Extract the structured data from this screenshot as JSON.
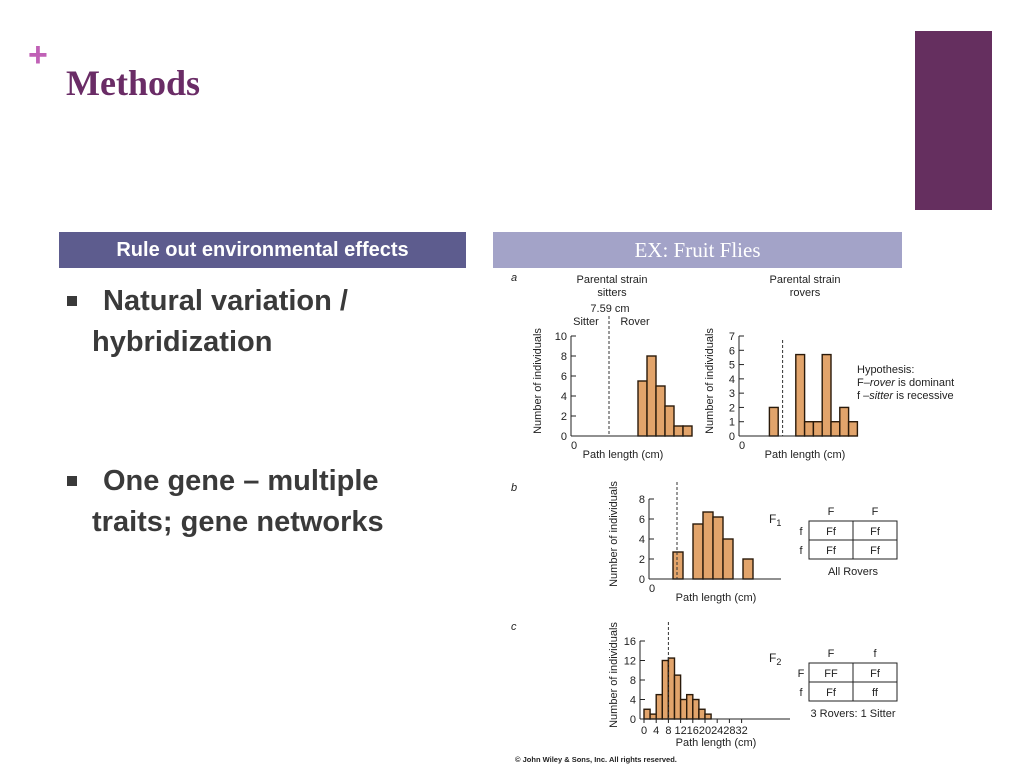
{
  "slide": {
    "plus_mark": "+",
    "title": "Methods",
    "left_header": "Rule out environmental effects",
    "right_header": "EX: Fruit Flies",
    "bullets": [
      {
        "line1": "Natural variation /",
        "line2": "hybridization"
      },
      {
        "line1": "One gene – multiple",
        "line2": "traits; gene networks"
      }
    ],
    "colors": {
      "title": "#6a2c66",
      "accent": "#652f5f",
      "left_header_bg": "#5d5c8e",
      "right_header_bg": "#a3a3c8",
      "bars": "#e2a46b"
    }
  },
  "figure": {
    "copyright": "© John Wiley & Sons, Inc. All rights reserved.",
    "panel_letters": [
      "a",
      "b",
      "c"
    ],
    "a_left": {
      "title1": "Parental strain",
      "title2": "sitters",
      "mean": "7.59 cm",
      "left_label": "Sitter",
      "right_label": "Rover"
    },
    "a_right": {
      "title1": "Parental strain",
      "title2": "rovers"
    },
    "ylabel": "Number of individuals",
    "xlabel": "Path length (cm)",
    "hypothesis": {
      "line1": "Hypothesis:",
      "line2_pre": "F–",
      "line2_it": "rover",
      "line2_post": " is dominant",
      "line3_pre": "f –",
      "line3_it": "sitter",
      "line3_post": " is recessive"
    },
    "f1": {
      "label": "F",
      "sub": "1",
      "col_headers": [
        "F",
        "F"
      ],
      "row_headers": [
        "f",
        "f"
      ],
      "cells": [
        [
          "Ff",
          "Ff"
        ],
        [
          "Ff",
          "Ff"
        ]
      ],
      "caption": "All Rovers"
    },
    "f2": {
      "label": "F",
      "sub": "2",
      "col_headers": [
        "F",
        "f"
      ],
      "row_headers": [
        "F",
        "f"
      ],
      "cells": [
        [
          "FF",
          "Ff"
        ],
        [
          "Ff",
          "ff"
        ]
      ],
      "caption": "3 Rovers: 1 Sitter"
    }
  },
  "chart_data": [
    {
      "type": "bar",
      "panel": "a-left",
      "title": "Parental strain sitters",
      "xlabel": "Path length (cm)",
      "ylabel": "Number of individuals",
      "yticks": [
        0,
        2,
        4,
        6,
        8,
        10
      ],
      "xticks": [
        0
      ],
      "ylim": [
        0,
        10
      ],
      "bin_width": 1,
      "x_start": 0,
      "values": [
        0,
        0,
        0,
        0,
        0,
        0,
        0,
        5.5,
        8,
        5,
        3,
        1,
        1,
        0
      ],
      "mean": 7.59,
      "mean_label": "7.59 cm"
    },
    {
      "type": "bar",
      "panel": "a-right",
      "title": "Parental strain rovers",
      "xlabel": "Path length (cm)",
      "ylabel": "Number of individuals",
      "yticks": [
        0,
        1,
        2,
        3,
        4,
        5,
        6,
        7
      ],
      "xticks": [
        0
      ],
      "ylim": [
        0,
        7
      ],
      "bin_width": 1,
      "x_start": 0,
      "values": [
        0,
        0,
        0,
        2,
        0,
        0,
        5.7,
        1,
        1,
        5.7,
        1,
        2,
        1,
        0
      ]
    },
    {
      "type": "bar",
      "panel": "b",
      "series_label": "F1",
      "xlabel": "Path length (cm)",
      "ylabel": "Number of individuals",
      "yticks": [
        0,
        2,
        4,
        6,
        8
      ],
      "xticks": [
        0
      ],
      "ylim": [
        0,
        8
      ],
      "bin_width": 1,
      "x_start": 0,
      "values": [
        0,
        0,
        2.7,
        0,
        5.5,
        6.7,
        6.2,
        4,
        0,
        2,
        0
      ]
    },
    {
      "type": "bar",
      "panel": "c",
      "series_label": "F2",
      "xlabel": "Path length (cm)",
      "ylabel": "Number of individuals",
      "yticks": [
        0,
        4,
        8,
        12,
        16
      ],
      "xticks": [
        0,
        4,
        8,
        12,
        16,
        20,
        24,
        28,
        32
      ],
      "ylim": [
        0,
        16
      ],
      "xlim": [
        0,
        32
      ],
      "bin_width": 2,
      "x_start": 0,
      "values": [
        2,
        1,
        5,
        12,
        12.5,
        9,
        4,
        5,
        4,
        2,
        1
      ]
    }
  ]
}
